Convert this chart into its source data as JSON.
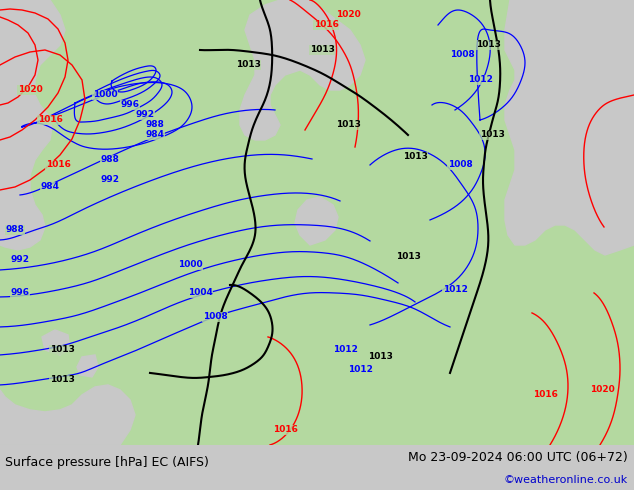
{
  "title_left": "Surface pressure [hPa] EC (AIFS)",
  "title_right": "Mo 23-09-2024 06:00 UTC (06+72)",
  "credit": "©weatheronline.co.uk",
  "bg_color": "#c8c8c8",
  "land_green": "#b4d9a0",
  "sea_gray": "#c8c8c8",
  "bottom_bar_color": "#ffffff",
  "title_fontsize": 9,
  "credit_fontsize": 8,
  "credit_color": "#0000cc",
  "figsize": [
    6.34,
    4.9
  ],
  "dpi": 100
}
